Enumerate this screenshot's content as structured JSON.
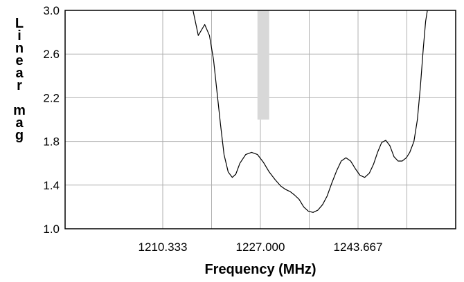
{
  "chart_data": {
    "type": "line",
    "xlabel": "Frequency (MHz)",
    "ylabel": "Linear mag",
    "xlim": [
      1193.667,
      1260.333
    ],
    "ylim": [
      1.0,
      3.0
    ],
    "x_ticks": [
      1210.333,
      1227.0,
      1243.667
    ],
    "x_tick_labels": [
      "1210.333",
      "1227.000",
      "1243.667"
    ],
    "y_ticks": [
      1.0,
      1.4,
      1.8,
      2.2,
      2.6,
      3.0
    ],
    "y_tick_labels": [
      "1.0",
      "1.4",
      "1.8",
      "2.2",
      "2.6",
      "3.0"
    ],
    "x_grid_lines": [
      1210.333,
      1218.667,
      1227.0,
      1235.333,
      1243.667,
      1252.0
    ],
    "grid": true,
    "line_color": "#000000",
    "grid_color": "#b0b0b0",
    "highlight_band": {
      "x_range": [
        1226.5,
        1228.5
      ],
      "y_range": [
        2.0,
        3.0
      ],
      "color": "#d8d8d8"
    },
    "series": [
      {
        "x": [
          1215.5,
          1216.4,
          1217.5,
          1218.3,
          1219.0,
          1219.6,
          1220.2,
          1220.8,
          1221.5,
          1222.2,
          1222.8,
          1223.5,
          1224.5,
          1225.5,
          1226.5,
          1227.5,
          1228.5,
          1229.5,
          1230.5,
          1231.3,
          1232.1,
          1232.8,
          1233.6,
          1234.4,
          1235.2,
          1236.0,
          1236.8,
          1237.6,
          1238.4,
          1239.2,
          1240.0,
          1240.8,
          1241.6,
          1242.4,
          1243.2,
          1244.0,
          1244.8,
          1245.6,
          1246.3,
          1247.0,
          1247.7,
          1248.4,
          1249.1,
          1249.8,
          1250.5,
          1251.2,
          1251.9,
          1252.5,
          1253.2,
          1253.8,
          1254.3,
          1254.8,
          1255.2,
          1255.5
        ],
        "y": [
          3.0,
          2.77,
          2.87,
          2.77,
          2.55,
          2.25,
          1.95,
          1.68,
          1.52,
          1.47,
          1.5,
          1.6,
          1.68,
          1.7,
          1.68,
          1.61,
          1.52,
          1.45,
          1.39,
          1.36,
          1.34,
          1.31,
          1.27,
          1.2,
          1.16,
          1.15,
          1.17,
          1.22,
          1.3,
          1.42,
          1.53,
          1.62,
          1.65,
          1.62,
          1.55,
          1.49,
          1.47,
          1.51,
          1.59,
          1.7,
          1.79,
          1.81,
          1.76,
          1.66,
          1.62,
          1.62,
          1.65,
          1.7,
          1.8,
          2.0,
          2.3,
          2.65,
          2.9,
          3.0
        ]
      }
    ]
  }
}
